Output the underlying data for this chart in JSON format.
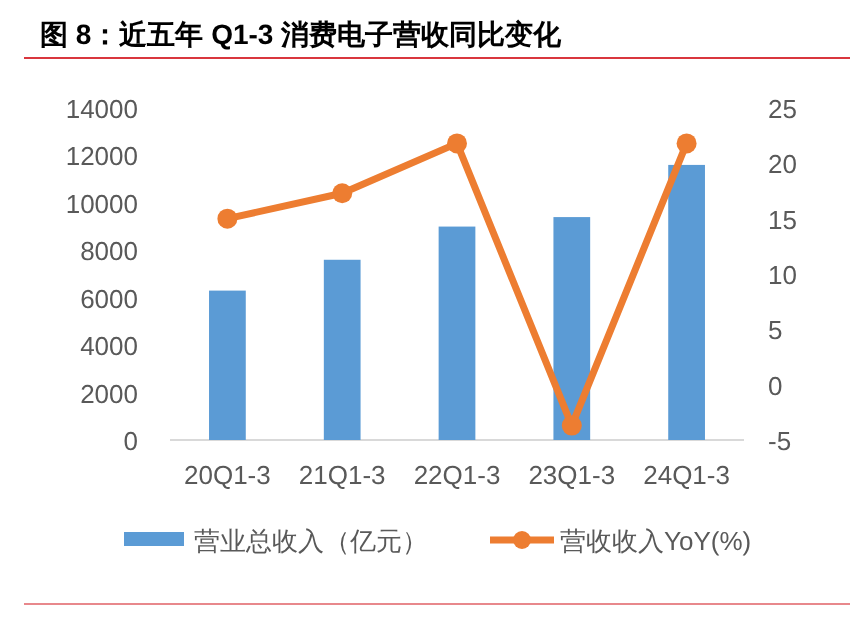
{
  "chart_data": {
    "type": "bar",
    "title": "图 8：近五年 Q1-3 消费电子营收同比变化",
    "categories": [
      "20Q1-3",
      "21Q1-3",
      "22Q1-3",
      "23Q1-3",
      "24Q1-3"
    ],
    "series": [
      {
        "name": "营业总收入（亿元）",
        "color": "#5b9bd5",
        "values": [
          6300,
          7600,
          9000,
          9400,
          11600
        ]
      },
      {
        "name": "营收收入YoY(%)",
        "type": "line",
        "axis": "y2",
        "color": "#ed7d31",
        "marker": "circle",
        "values": [
          15.0,
          17.3,
          21.8,
          -3.7,
          21.8
        ]
      }
    ],
    "ylim": [
      0,
      14000
    ],
    "yticks": [
      0,
      2000,
      4000,
      6000,
      8000,
      10000,
      12000,
      14000
    ],
    "y2lim": [
      -5,
      25
    ],
    "y2ticks": [
      -5,
      0,
      5,
      10,
      15,
      20,
      25
    ],
    "grid": false,
    "legend": "bottom"
  }
}
